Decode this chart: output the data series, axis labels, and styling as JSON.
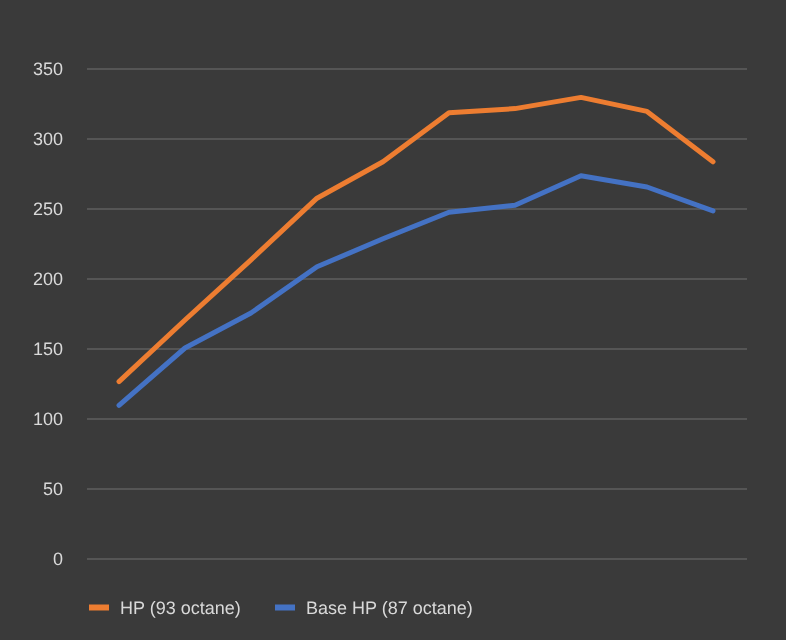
{
  "chart_data": {
    "type": "line",
    "categories": [
      null,
      null,
      null,
      null,
      null,
      null,
      null,
      null,
      null,
      null
    ],
    "series": [
      {
        "name": "HP (93 octane)",
        "color": "#ed7d31",
        "values": [
          126,
          170,
          213,
          257,
          283,
          318,
          321,
          329,
          319,
          283
        ]
      },
      {
        "name": "Base HP (87 octane)",
        "color": "#4472c4",
        "values": [
          109,
          150,
          175,
          208,
          228,
          247,
          252,
          273,
          265,
          248
        ]
      }
    ],
    "ylim": [
      0,
      350
    ],
    "yticks": [
      0,
      50,
      100,
      150,
      200,
      250,
      300,
      350
    ],
    "grid": "y",
    "legend": "bottom",
    "tick_labels": "y",
    "marker": "none",
    "line_style": "solid"
  }
}
